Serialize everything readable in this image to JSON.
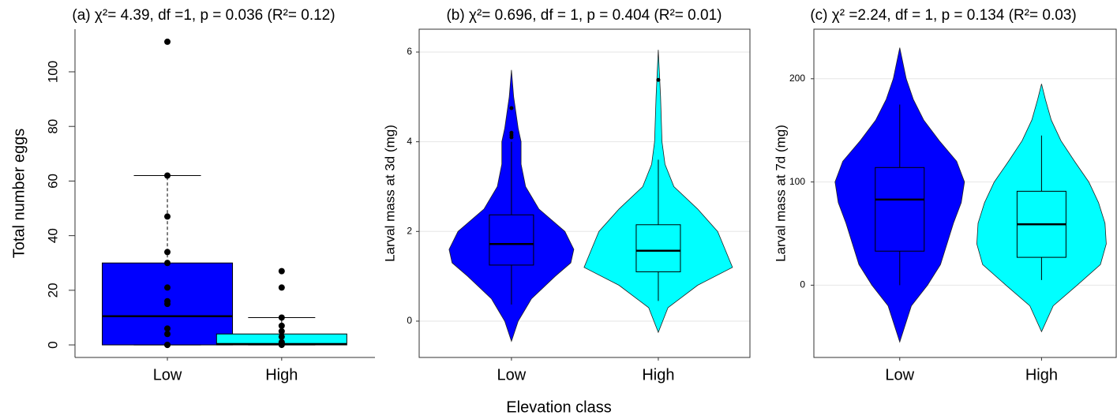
{
  "xlabel": "Elevation class",
  "chart_data": [
    {
      "type": "box",
      "title": "(a) χ²= 4.39, df =1, p = 0.036 (R²= 0.12)",
      "ylabel": "Total number eggs",
      "categories": [
        "Low",
        "High"
      ],
      "ylim": [
        -4.6,
        115.6
      ],
      "yticks": [
        0,
        20,
        40,
        60,
        80,
        100
      ],
      "grid": false,
      "groups": [
        {
          "color": "#0000ff",
          "whisker_low": 0,
          "q1": 0,
          "median": 10.5,
          "q3": 30,
          "whisker_high": 62,
          "points": [
            0,
            0,
            4,
            6,
            15,
            16,
            21,
            30,
            34,
            47,
            62,
            111
          ]
        },
        {
          "color": "#00ffff",
          "whisker_low": 0,
          "q1": 0,
          "median": 0.3,
          "q3": 4,
          "whisker_high": 10,
          "points": [
            0,
            0.5,
            1,
            3,
            5,
            7,
            10,
            21,
            27
          ]
        }
      ]
    },
    {
      "type": "violin",
      "title": "(b) χ²= 0.696, df = 1, p = 0.404 (R²= 0.01)",
      "ylabel": "Larval mass at 3d (mg)",
      "categories": [
        "Low",
        "High"
      ],
      "ylim": [
        -0.81,
        6.51
      ],
      "yticks": [
        0,
        2,
        4,
        6
      ],
      "grid": true,
      "groups": [
        {
          "color": "#0000ff",
          "whisker_low": 0.37,
          "q1": 1.25,
          "median": 1.72,
          "q3": 2.37,
          "whisker_high": 4.0,
          "points": [
            4.1,
            4.15,
            4.2,
            4.75
          ],
          "violin": {
            "y": [
              -0.45,
              0,
              0.5,
              1,
              1.3,
              1.6,
              2,
              2.5,
              3,
              3.5,
              4,
              4.3,
              5,
              5.6
            ],
            "density": [
              0,
              0.09,
              0.27,
              0.59,
              0.8,
              0.84,
              0.72,
              0.37,
              0.19,
              0.13,
              0.13,
              0.09,
              0.03,
              0
            ]
          }
        },
        {
          "color": "#00ffff",
          "whisker_low": 0.45,
          "q1": 1.1,
          "median": 1.57,
          "q3": 2.15,
          "whisker_high": 3.6,
          "points": [
            5.38
          ],
          "violin": {
            "y": [
              -0.25,
              0.3,
              0.8,
              1.2,
              1.6,
              2,
              2.5,
              3,
              3.5,
              4,
              5,
              6.05
            ],
            "density": [
              0,
              0.13,
              0.53,
              1,
              0.9,
              0.8,
              0.53,
              0.21,
              0.09,
              0.05,
              0.03,
              0
            ]
          }
        }
      ]
    },
    {
      "type": "violin",
      "title": "(c) χ² =2.24, df = 1, p = 0.134 (R²= 0.03)",
      "ylabel": "Larval mass at 7d (mg)",
      "categories": [
        "Low",
        "High"
      ],
      "ylim": [
        -70,
        248
      ],
      "yticks": [
        0,
        100,
        200
      ],
      "grid": true,
      "groups": [
        {
          "color": "#0000ff",
          "whisker_low": 0,
          "q1": 33,
          "median": 83,
          "q3": 114,
          "whisker_high": 175,
          "points": [],
          "violin": {
            "y": [
              -55,
              -20,
              0,
              20,
              40,
              60,
              80,
              100,
              120,
              140,
              160,
              180,
              200,
              230
            ],
            "density": [
              0,
              0.18,
              0.43,
              0.63,
              0.73,
              0.83,
              0.95,
              1,
              0.88,
              0.61,
              0.37,
              0.21,
              0.1,
              0
            ]
          }
        },
        {
          "color": "#00ffff",
          "whisker_low": 5,
          "q1": 27,
          "median": 59,
          "q3": 91,
          "whisker_high": 145,
          "points": [],
          "violin": {
            "y": [
              -45,
              -20,
              0,
              20,
              40,
              60,
              80,
              100,
              120,
              140,
              160,
              180,
              195
            ],
            "density": [
              0,
              0.18,
              0.55,
              0.91,
              1,
              0.98,
              0.88,
              0.73,
              0.51,
              0.3,
              0.15,
              0.06,
              0
            ]
          }
        }
      ]
    }
  ]
}
